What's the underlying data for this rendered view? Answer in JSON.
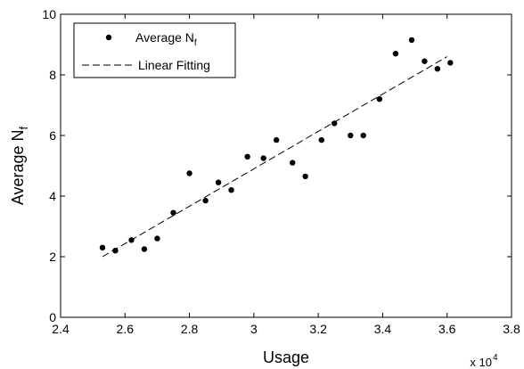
{
  "chart_data": {
    "type": "scatter",
    "xlabel": "Usage",
    "ylabel": "Average N",
    "ylabel_subscript": "f",
    "x_multiplier": "x 10",
    "x_multiplier_exp": "4",
    "xlim": [
      2.4,
      3.8
    ],
    "ylim": [
      0,
      10
    ],
    "x_ticks": [
      "2.4",
      "2.6",
      "2.8",
      "3",
      "3.2",
      "3.4",
      "3.6",
      "3.8"
    ],
    "y_ticks": [
      "0",
      "2",
      "4",
      "6",
      "8",
      "10"
    ],
    "grid": false,
    "legend_position": "top-left",
    "legend": {
      "scatter_label": "Average N",
      "scatter_subscript": "f",
      "line_label": "Linear Fitting"
    },
    "series": [
      {
        "kind": "scatter",
        "x": [
          2.53,
          2.57,
          2.62,
          2.66,
          2.7,
          2.75,
          2.8,
          2.85,
          2.89,
          2.93,
          2.98,
          3.03,
          3.07,
          3.12,
          3.16,
          3.21,
          3.25,
          3.3,
          3.34,
          3.39,
          3.44,
          3.49,
          3.53,
          3.57,
          3.61
        ],
        "y": [
          2.3,
          2.2,
          2.55,
          2.25,
          2.6,
          3.45,
          4.75,
          3.85,
          4.45,
          4.2,
          5.3,
          5.25,
          5.85,
          5.1,
          4.65,
          5.85,
          6.4,
          6.0,
          6.0,
          7.2,
          8.7,
          9.15,
          8.45,
          8.2,
          8.4
        ]
      },
      {
        "kind": "line",
        "style": "dashed",
        "x": [
          2.53,
          3.6
        ],
        "y": [
          2.0,
          8.6
        ]
      }
    ]
  }
}
